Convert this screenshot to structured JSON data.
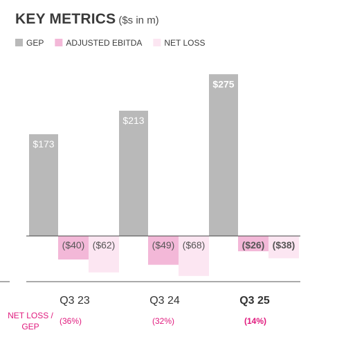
{
  "chart_data": {
    "type": "bar",
    "title": "KEY METRICS",
    "subtitle": "($s in m)",
    "categories": [
      "Q3 23",
      "Q3 24",
      "Q3 25"
    ],
    "highlight_category": "Q3 25",
    "series": [
      {
        "name": "GEP",
        "values": [
          173,
          213,
          275
        ],
        "labels": [
          "$173",
          "$213",
          "$275"
        ],
        "color": "#b9b9b9"
      },
      {
        "name": "ADJUSTED EBITDA",
        "values": [
          -40,
          -49,
          -26
        ],
        "labels": [
          "($40)",
          "($49)",
          "($26)"
        ],
        "color": "#f3b8d8"
      },
      {
        "name": "NET LOSS",
        "values": [
          -62,
          -68,
          -38
        ],
        "labels": [
          "($62)",
          "($68)",
          "($38)"
        ],
        "color": "#fce6f2"
      }
    ],
    "ratio": {
      "label": "NET LOSS / GEP",
      "values": [
        "(36%)",
        "(32%)",
        "(14%)"
      ],
      "color": "#e0197d"
    },
    "legend_position": "top-left",
    "grid": false
  }
}
